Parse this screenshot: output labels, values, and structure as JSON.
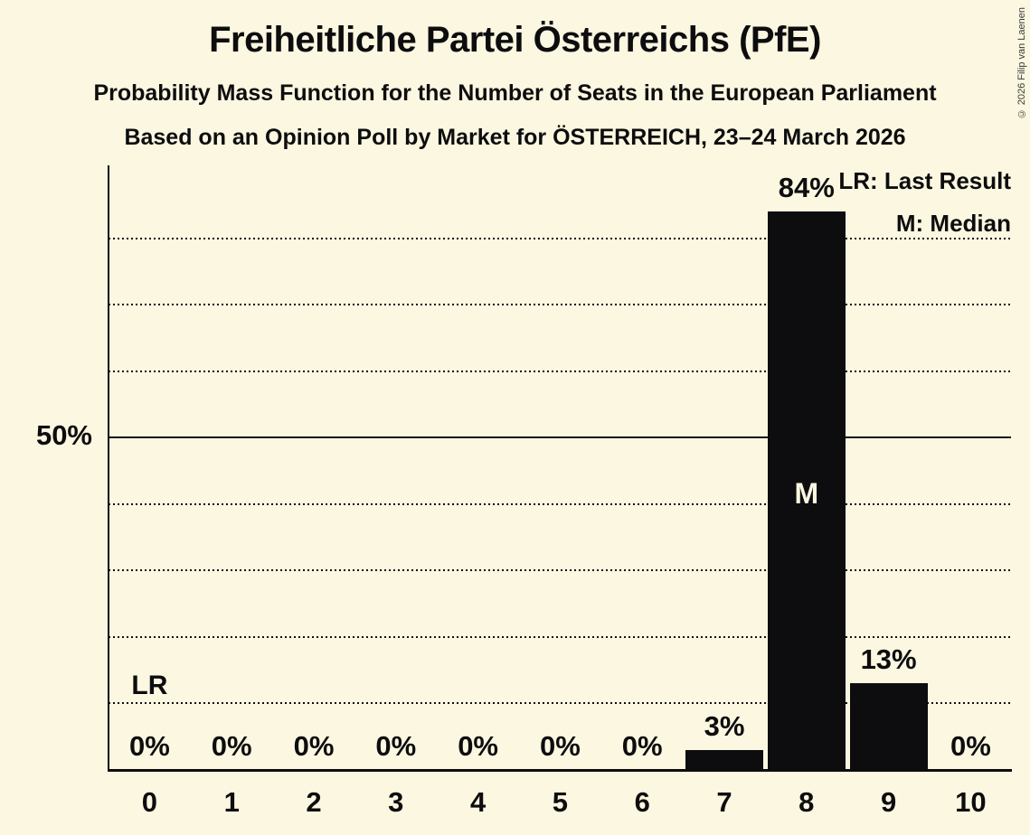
{
  "title": "Freiheitliche Partei Österreichs (PfE)",
  "subtitle1": "Probability Mass Function for the Number of Seats in the European Parliament",
  "subtitle2": "Based on an Opinion Poll by Market for ÖSTERREICH, 23–24 March 2026",
  "copyright": "© 2026 Filip van Laenen",
  "legend": {
    "lr": "LR: Last Result",
    "m": "M: Median"
  },
  "y_axis": {
    "tick_label": "50%"
  },
  "colors": {
    "background": "#fbf7e0",
    "bar": "#0d0d0f",
    "text": "#0d0d0f"
  },
  "chart_data": {
    "type": "bar",
    "title": "Freiheitliche Partei Österreichs (PfE) — Probability Mass Function for the Number of Seats in the European Parliament",
    "xlabel": "",
    "ylabel": "",
    "categories": [
      "0",
      "1",
      "2",
      "3",
      "4",
      "5",
      "6",
      "7",
      "8",
      "9",
      "10"
    ],
    "values": [
      0,
      0,
      0,
      0,
      0,
      0,
      0,
      3,
      84,
      13,
      0
    ],
    "bar_labels": [
      "0%",
      "0%",
      "0%",
      "0%",
      "0%",
      "0%",
      "0%",
      "3%",
      "84%",
      "13%",
      "0%"
    ],
    "ylim": [
      0,
      90
    ],
    "y_tick_labels": [
      "50%"
    ],
    "grid_dotted_percents": [
      10,
      20,
      30,
      40,
      60,
      70,
      80
    ],
    "grid_solid_percents": [
      50
    ],
    "legend_position": "top-right",
    "annotations": {
      "lr_text": "LR",
      "lr_seat_index": 0,
      "median_text": "M",
      "median_seat_index": 8
    }
  }
}
